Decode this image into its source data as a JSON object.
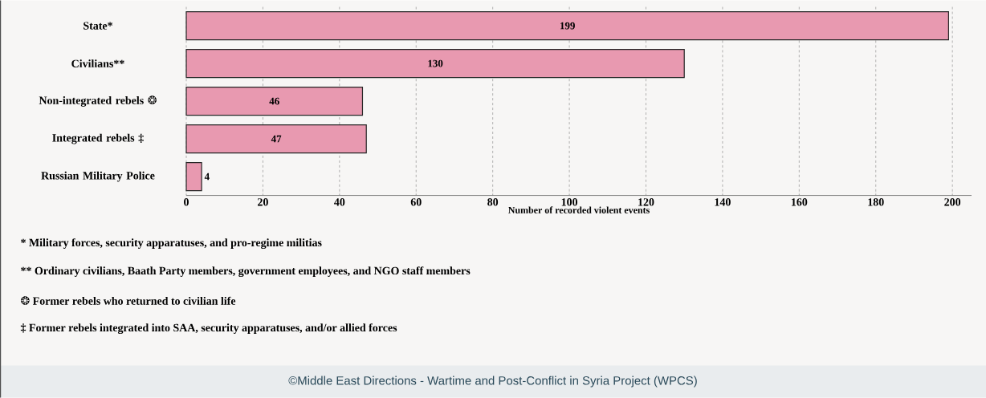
{
  "chart_data": {
    "type": "bar",
    "orientation": "horizontal",
    "categories": [
      "State*",
      "Civilians**",
      "Non-integrated rebels ❂",
      "Integrated rebels ‡",
      "Russian Military Police"
    ],
    "values": [
      199,
      130,
      46,
      47,
      4
    ],
    "color": "#e899b0",
    "xlabel": "Number of recorded violent events",
    "xlim": [
      0,
      205
    ],
    "xticks": [
      0,
      20,
      40,
      60,
      80,
      100,
      120,
      140,
      160,
      180,
      200
    ],
    "grid": "x",
    "data_labels": true,
    "annotations": [
      "* Military forces, security apparatuses, and pro-regime militias",
      "** Ordinary civilians, Baath Party members,  government employees, and NGO staff members",
      "❂ Former rebels who returned to civilian life",
      "‡ Former rebels integrated into SAA, security apparatuses, and/or allied forces",
      "©Middle East Directions - Wartime and Post-Conflict in Syria Project (WPCS)"
    ]
  }
}
